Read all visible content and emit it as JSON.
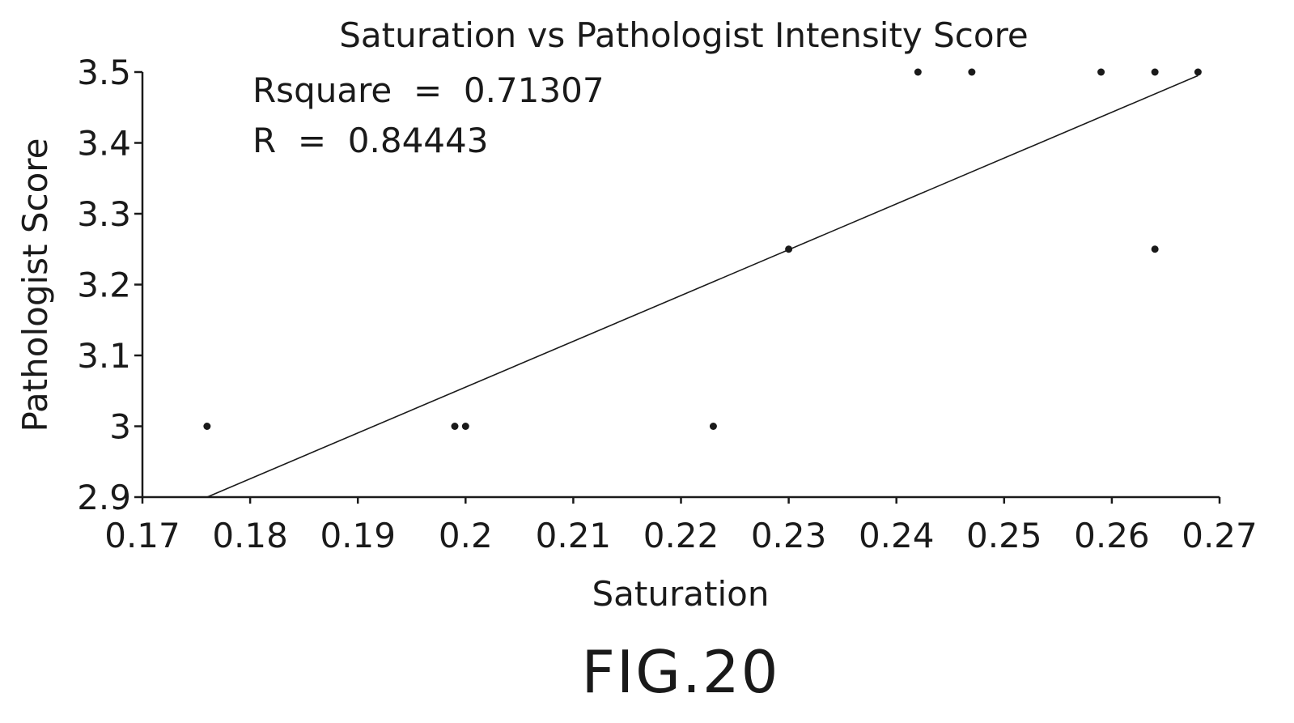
{
  "chart_data": {
    "type": "scatter",
    "title": "Saturation vs Pathologist Intensity Score",
    "xlabel": "Saturation",
    "ylabel": "Pathologist Score",
    "xlim": [
      0.17,
      0.27
    ],
    "ylim": [
      2.9,
      3.5
    ],
    "xticks": [
      "0.17",
      "0.18",
      "0.19",
      "0.2",
      "0.21",
      "0.22",
      "0.23",
      "0.24",
      "0.25",
      "0.26",
      "0.27"
    ],
    "yticks": [
      "2.9",
      "3",
      "3.1",
      "3.2",
      "3.3",
      "3.4",
      "3.5"
    ],
    "points": [
      {
        "x": 0.176,
        "y": 3.0
      },
      {
        "x": 0.199,
        "y": 3.0
      },
      {
        "x": 0.2,
        "y": 3.0
      },
      {
        "x": 0.223,
        "y": 3.0
      },
      {
        "x": 0.23,
        "y": 3.25
      },
      {
        "x": 0.242,
        "y": 3.5
      },
      {
        "x": 0.247,
        "y": 3.5
      },
      {
        "x": 0.259,
        "y": 3.5
      },
      {
        "x": 0.264,
        "y": 3.5
      },
      {
        "x": 0.264,
        "y": 3.25
      },
      {
        "x": 0.268,
        "y": 3.5
      }
    ],
    "fit_line": {
      "x": [
        0.176,
        0.268
      ],
      "y": [
        2.9,
        3.495
      ]
    },
    "annotations": {
      "rsquare": "Rsquare  =  0.71307",
      "r": "R  =  0.84443"
    },
    "grid": false,
    "legend": "none"
  },
  "figure_label": "FIG.20"
}
